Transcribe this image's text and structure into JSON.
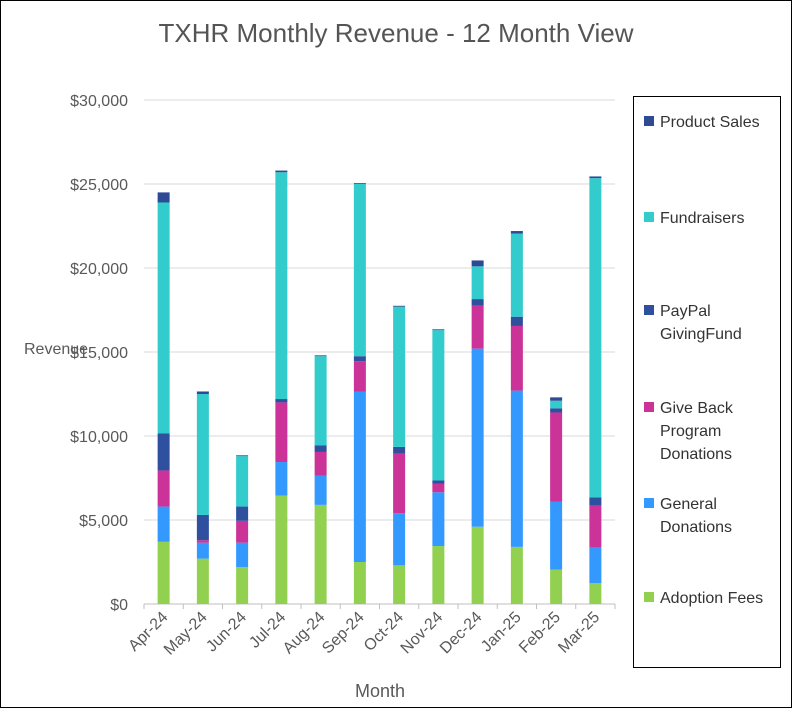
{
  "chart_data": {
    "type": "bar",
    "stacked": true,
    "title": "TXHR Monthly Revenue - 12 Month View",
    "xlabel": "Month",
    "ylabel": "Revenue",
    "ylim": [
      0,
      30000
    ],
    "yticks": [
      0,
      5000,
      10000,
      15000,
      20000,
      25000,
      30000
    ],
    "ytick_labels": [
      "$0",
      "$5,000",
      "$10,000",
      "$15,000",
      "$20,000",
      "$25,000",
      "$30,000"
    ],
    "grid": true,
    "legend_position": "right",
    "categories": [
      "Apr-24",
      "May-24",
      "Jun-24",
      "Jul-24",
      "Aug-24",
      "Sep-24",
      "Oct-24",
      "Nov-24",
      "Dec-24",
      "Jan-25",
      "Feb-25",
      "Mar-25"
    ],
    "series": [
      {
        "name": "Adoption Fees",
        "color": "#92D050",
        "values": [
          3700,
          2700,
          2200,
          6450,
          5900,
          2500,
          2300,
          3450,
          4600,
          3400,
          2050,
          1250
        ]
      },
      {
        "name": "General Donations",
        "color": "#3399FF",
        "values": [
          2100,
          950,
          1450,
          2000,
          1750,
          10150,
          3100,
          3200,
          10600,
          9300,
          4050,
          2100
        ]
      },
      {
        "name": "Give Back Program Donations",
        "color": "#CC3399",
        "values": [
          2150,
          150,
          1300,
          3550,
          1400,
          1800,
          3550,
          500,
          2550,
          3850,
          5300,
          2500
        ]
      },
      {
        "name": "PayPal GivingFund",
        "color": "#2F4F9F",
        "values": [
          2200,
          1500,
          850,
          200,
          400,
          300,
          400,
          200,
          400,
          550,
          250,
          500
        ]
      },
      {
        "name": "Fundraisers",
        "color": "#33CCCC",
        "values": [
          13750,
          7200,
          3000,
          13500,
          5300,
          10250,
          8350,
          8950,
          1950,
          4950,
          450,
          19000
        ]
      },
      {
        "name": "Product Sales",
        "color": "#2E4A95",
        "values": [
          600,
          150,
          50,
          100,
          50,
          50,
          50,
          50,
          350,
          150,
          200,
          100
        ]
      }
    ]
  }
}
